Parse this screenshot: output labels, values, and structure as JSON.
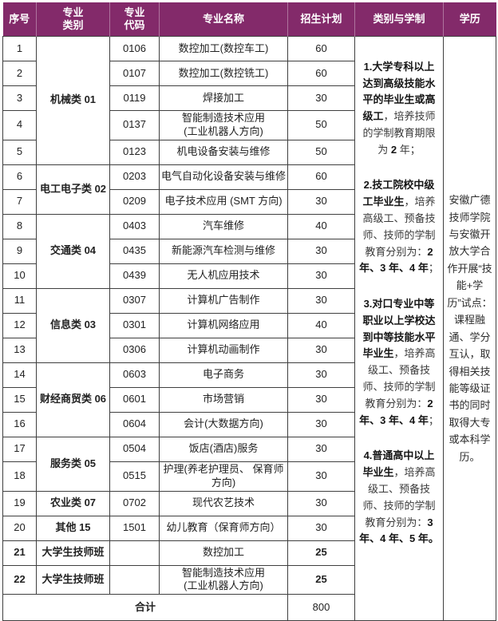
{
  "header": {
    "col_no": "序号",
    "col_category": "专业\n类别",
    "col_code": "专业\n代码",
    "col_name": "专业名称",
    "col_plan": "招生计划",
    "col_schedule": "类别与学制",
    "col_degree": "学历"
  },
  "colors": {
    "header_bg": "#832a6a",
    "header_text": "#ffffff",
    "border": "#3f3f3f",
    "body_text": "#222222"
  },
  "table": {
    "rows": [
      {
        "no": "1",
        "category": {
          "label": "机械类 01",
          "rowspan": 5
        },
        "code": "0106",
        "name": "数控加工(数控车工)",
        "plan": "60"
      },
      {
        "no": "2",
        "code": "0107",
        "name": "数控加工(数控铣工)",
        "plan": "60"
      },
      {
        "no": "3",
        "code": "0119",
        "name": "焊接加工",
        "plan": "30"
      },
      {
        "no": "4",
        "code": "0137",
        "name": "智能制造技术应用\n(工业机器人方向)",
        "plan": "50"
      },
      {
        "no": "5",
        "code": "0123",
        "name": "机电设备安装与维修",
        "plan": "50"
      },
      {
        "no": "6",
        "category": {
          "label": "电工电子类 02",
          "rowspan": 2
        },
        "code": "0203",
        "name": "电气自动化设备安装与维修",
        "plan": "60"
      },
      {
        "no": "7",
        "code": "0209",
        "name": "电子技术应用 (SMT 方向)",
        "plan": "30"
      },
      {
        "no": "8",
        "category": {
          "label": "交通类 04",
          "rowspan": 3
        },
        "code": "0403",
        "name": "汽车维修",
        "plan": "40"
      },
      {
        "no": "9",
        "code": "0435",
        "name": "新能源汽车检测与维修",
        "plan": "30"
      },
      {
        "no": "10",
        "code": "0439",
        "name": "无人机应用技术",
        "plan": "30"
      },
      {
        "no": "11",
        "category": {
          "label": "信息类 03",
          "rowspan": 3
        },
        "code": "0307",
        "name": "计算机广告制作",
        "plan": "30"
      },
      {
        "no": "12",
        "code": "0301",
        "name": "计算机网络应用",
        "plan": "40"
      },
      {
        "no": "13",
        "code": "0306",
        "name": "计算机动画制作",
        "plan": "30"
      },
      {
        "no": "14",
        "category": {
          "label": "财经商贸类 06",
          "rowspan": 3
        },
        "code": "0603",
        "name": "电子商务",
        "plan": "30"
      },
      {
        "no": "15",
        "code": "0601",
        "name": "市场营销",
        "plan": "30"
      },
      {
        "no": "16",
        "code": "0604",
        "name": "会计(大数据方向)",
        "plan": "30"
      },
      {
        "no": "17",
        "category": {
          "label": "服务类 05",
          "rowspan": 2
        },
        "code": "0504",
        "name": "饭店(酒店)服务",
        "plan": "30"
      },
      {
        "no": "18",
        "code": "0515",
        "name": "护理(养老护理员、 保育师方向)",
        "plan": "30"
      },
      {
        "no": "19",
        "category": {
          "label": "农业类 07",
          "rowspan": 1
        },
        "code": "0702",
        "name": "现代农艺技术",
        "plan": "30"
      },
      {
        "no": "20",
        "category": {
          "label": "其他 15",
          "rowspan": 1
        },
        "code": "1501",
        "name": "幼儿教育（保育师方向）",
        "plan": "30"
      },
      {
        "no": "21",
        "category": {
          "label": "大学生技师班",
          "rowspan": 1,
          "bold": true
        },
        "code": "",
        "name": "数控加工",
        "plan": "25",
        "emphasis": true
      },
      {
        "no": "22",
        "category": {
          "label": "大学生技师班",
          "rowspan": 1,
          "bold": true
        },
        "code": "",
        "name": "智能制造技术应用\n(工业机器人方向)",
        "plan": "25",
        "emphasis": true
      }
    ],
    "total_label": "合计",
    "total_plan": "800"
  },
  "schedule_notes": [
    {
      "parts": [
        {
          "t": "1.大学专科以上达到高级技能水平的毕业生或高级工",
          "b": true
        },
        {
          "t": "，培养技师的学制教育期限为 ",
          "b": false
        },
        {
          "t": "2",
          "b": true
        },
        {
          "t": " 年；",
          "b": false
        }
      ]
    },
    {
      "parts": [
        {
          "t": "2.技工院校中级工毕业生",
          "b": true
        },
        {
          "t": "，培养高级工、预备技师、技师的学制教育分别为：",
          "b": false
        },
        {
          "t": "2 年、3 年、4 年",
          "b": true
        },
        {
          "t": "；",
          "b": false
        }
      ]
    },
    {
      "parts": [
        {
          "t": "3.对口专业中等职业以上学校达到中等技能水平毕业生",
          "b": true
        },
        {
          "t": "，培养高级工、预备技师、技师的学制教育分别为：",
          "b": false
        },
        {
          "t": "2 年、3 年、4 年",
          "b": true
        },
        {
          "t": "；",
          "b": false
        }
      ]
    },
    {
      "parts": [
        {
          "t": "4.普通高中以上毕业生",
          "b": true
        },
        {
          "t": "，培养高级工、预备技师、技师的学制教育分别为：",
          "b": false
        },
        {
          "t": "3 年、4 年、5 年。",
          "b": true
        }
      ]
    }
  ],
  "degree_text": "安徽广德技师学院与安徽开放大学合作开展“技能+学历”试点：课程融通、学分互认，取得相关技能等级证书的同时取得大专或本科学历。"
}
